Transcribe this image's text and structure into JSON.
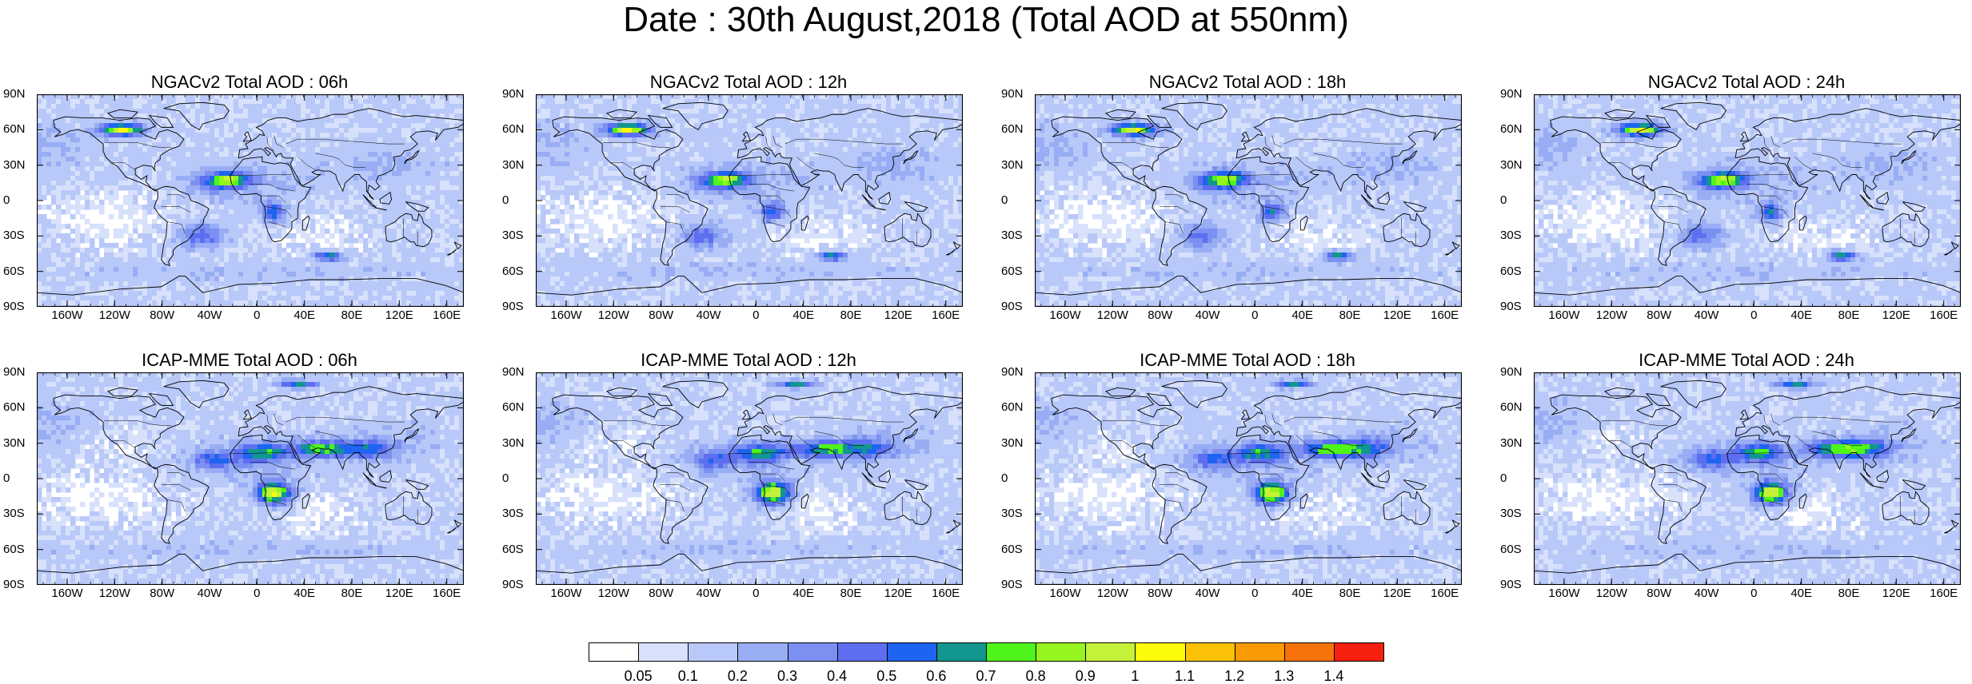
{
  "title": "Date : 30th August,2018 (Total AOD at 550nm)",
  "panels": [
    {
      "title": "NGACv2 Total AOD : 06h",
      "model": "NGACv2",
      "hour": "06h"
    },
    {
      "title": "NGACv2 Total AOD : 12h",
      "model": "NGACv2",
      "hour": "12h"
    },
    {
      "title": "NGACv2 Total AOD : 18h",
      "model": "NGACv2",
      "hour": "18h"
    },
    {
      "title": "NGACv2 Total AOD : 24h",
      "model": "NGACv2",
      "hour": "24h"
    },
    {
      "title": "ICAP-MME Total AOD : 06h",
      "model": "ICAP-MME",
      "hour": "06h"
    },
    {
      "title": "ICAP-MME Total AOD : 12h",
      "model": "ICAP-MME",
      "hour": "12h"
    },
    {
      "title": "ICAP-MME Total AOD : 18h",
      "model": "ICAP-MME",
      "hour": "18h"
    },
    {
      "title": "ICAP-MME Total AOD : 24h",
      "model": "ICAP-MME",
      "hour": "24h"
    }
  ],
  "lat_ticks": [
    "90N",
    "60N",
    "30N",
    "0",
    "30S",
    "60S",
    "90S"
  ],
  "lon_ticks": [
    "160W",
    "120W",
    "80W",
    "40W",
    "0",
    "40E",
    "80E",
    "120E",
    "160E"
  ],
  "colorbar": {
    "labels": [
      "0.05",
      "0.1",
      "0.2",
      "0.3",
      "0.4",
      "0.5",
      "0.6",
      "0.7",
      "0.8",
      "0.9",
      "1",
      "1.1",
      "1.2",
      "1.3",
      "1.4"
    ],
    "colors": [
      "#ffffff",
      "#d7e1fb",
      "#b8c8f8",
      "#98adf4",
      "#7b90f0",
      "#5d6ff0",
      "#1e64f0",
      "#12968f",
      "#4ef41a",
      "#96f51e",
      "#c4f23a",
      "#fbfb0a",
      "#fbc107",
      "#fa9a05",
      "#f8720a",
      "#f5200f"
    ]
  }
}
